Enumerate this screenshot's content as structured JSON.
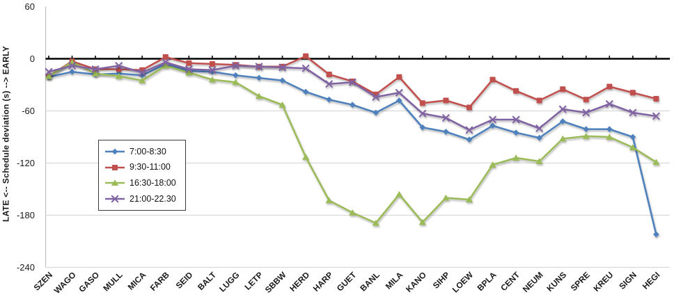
{
  "chart_data": {
    "type": "line",
    "title": "",
    "xlabel": "",
    "ylabel": "LATE <--   Schedule deviation (s)    --> EARLY",
    "ylim": [
      -240,
      60
    ],
    "yticks": [
      60,
      0,
      -60,
      -120,
      -180,
      -240
    ],
    "grid": "horizontal gridlines every 60s; bold black zero line with category tick marks",
    "legend_position": "inside top-left area, boxed",
    "x_label_rotation": -45,
    "categories": [
      "SZEN",
      "WAGO",
      "GASO",
      "MULL",
      "MICA",
      "FARB",
      "SEID",
      "BALT",
      "LUGG",
      "LETP",
      "SBBW",
      "HERD",
      "HARP",
      "GUET",
      "BANL",
      "MILA",
      "KANO",
      "SIHP",
      "LOEW",
      "BPLA",
      "CENT",
      "NEUM",
      "KUNS",
      "SPRE",
      "KREU",
      "SIGN",
      "HEGI"
    ],
    "series": [
      {
        "name": "7:00-8:30",
        "color": "#4F81BD",
        "marker": "diamond",
        "values": [
          -21,
          -15,
          -18,
          -17,
          -19,
          -6,
          -14,
          -15,
          -19,
          -22,
          -25,
          -38,
          -47,
          -53,
          -62,
          -48,
          -79,
          -84,
          -93,
          -77,
          -85,
          -91,
          -72,
          -81,
          -81,
          -90,
          -202
        ]
      },
      {
        "name": "9:30-11:00",
        "color": "#C0504D",
        "marker": "square",
        "values": [
          -20,
          -3,
          -12,
          -12,
          -13,
          2,
          -5,
          -6,
          -7,
          -9,
          -9,
          3,
          -18,
          -26,
          -41,
          -21,
          -51,
          -48,
          -56,
          -24,
          -37,
          -48,
          -35,
          -47,
          -32,
          -39,
          -46
        ]
      },
      {
        "name": "16:30-18:00",
        "color": "#9BBB59",
        "marker": "triangle",
        "values": [
          -20,
          -4,
          -17,
          -20,
          -25,
          -8,
          -16,
          -24,
          -27,
          -43,
          -53,
          -113,
          -163,
          -177,
          -189,
          -156,
          -188,
          -160,
          -162,
          -122,
          -114,
          -118,
          -92,
          -89,
          -90,
          -102,
          -119
        ]
      },
      {
        "name": "21:00-22.30",
        "color": "#8064A2",
        "marker": "x",
        "values": [
          -15,
          -8,
          -12,
          -8,
          -16,
          -4,
          -12,
          -13,
          -8,
          -9,
          -10,
          -11,
          -29,
          -27,
          -44,
          -39,
          -63,
          -68,
          -82,
          -70,
          -70,
          -80,
          -58,
          -62,
          -52,
          -62,
          -66
        ]
      }
    ],
    "style": {
      "zero_line_color": "#000000",
      "gridline_color": "#D9D9D9",
      "axis_line_color": "#BFBFBF",
      "text_color": "#1a1a1a"
    }
  }
}
